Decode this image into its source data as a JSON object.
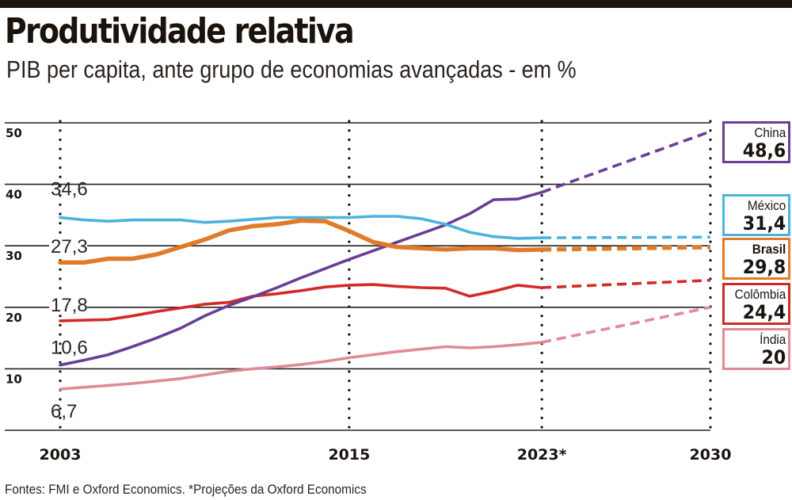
{
  "header": {
    "title": "Produtividade relativa",
    "subtitle": "PIB per capita, ante grupo de economias avançadas - em %"
  },
  "footer": {
    "source": "Fontes: FMI e Oxford Economics. *Projeções da Oxford Economics"
  },
  "chart_data": {
    "type": "line",
    "title": "Produtividade relativa",
    "subtitle": "PIB per capita, ante grupo de economias avançadas - em %",
    "xlabel": "",
    "ylabel": "%",
    "xlim": [
      2003,
      2030
    ],
    "ylim": [
      0,
      50
    ],
    "y_ticks": [
      10,
      20,
      30,
      40,
      50
    ],
    "y_tick_labels": [
      "10",
      "20",
      "30",
      "40",
      "50"
    ],
    "x_ticks": [
      2003,
      2015,
      2023,
      2030
    ],
    "x_tick_labels": [
      "2003",
      "2015",
      "2023*",
      "2030"
    ],
    "grid": "horizontal",
    "projection_start": 2023,
    "legend_placement": "right",
    "series": [
      {
        "name": "China",
        "color": "#6b3d97",
        "start_label": "10,6",
        "end_label": "48,6",
        "x": [
          2003,
          2004,
          2005,
          2006,
          2007,
          2008,
          2009,
          2010,
          2011,
          2012,
          2013,
          2014,
          2015,
          2016,
          2017,
          2018,
          2019,
          2020,
          2021,
          2022,
          2023
        ],
        "values": [
          10.6,
          11.4,
          12.3,
          13.6,
          15.0,
          16.6,
          18.6,
          20.3,
          21.7,
          23.2,
          24.8,
          26.3,
          27.8,
          29.2,
          30.6,
          32.0,
          33.4,
          35.2,
          37.5,
          37.6,
          38.7
        ],
        "projection_x": [
          2023,
          2030
        ],
        "projection_values": [
          38.7,
          48.6
        ]
      },
      {
        "name": "México",
        "color": "#4bb3dd",
        "start_label": "34,6",
        "end_label": "31,4",
        "x": [
          2003,
          2004,
          2005,
          2006,
          2007,
          2008,
          2009,
          2010,
          2011,
          2012,
          2013,
          2014,
          2015,
          2016,
          2017,
          2018,
          2019,
          2020,
          2021,
          2022,
          2023
        ],
        "values": [
          34.6,
          34.2,
          34.0,
          34.2,
          34.2,
          34.2,
          33.8,
          34.0,
          34.3,
          34.6,
          34.6,
          34.6,
          34.6,
          34.8,
          34.8,
          34.4,
          33.5,
          32.2,
          31.5,
          31.2,
          31.3
        ],
        "projection_x": [
          2023,
          2030
        ],
        "projection_values": [
          31.3,
          31.4
        ]
      },
      {
        "name": "Brasil",
        "color": "#e07b2a",
        "start_label": "27,3",
        "end_label": "29,8",
        "x": [
          2003,
          2004,
          2005,
          2006,
          2007,
          2008,
          2009,
          2010,
          2011,
          2012,
          2013,
          2014,
          2015,
          2016,
          2017,
          2018,
          2019,
          2020,
          2021,
          2022,
          2023
        ],
        "values": [
          27.3,
          27.3,
          27.9,
          27.9,
          28.6,
          29.8,
          31.0,
          32.5,
          33.2,
          33.5,
          34.1,
          34.0,
          32.4,
          30.6,
          29.8,
          29.6,
          29.4,
          29.6,
          29.6,
          29.3,
          29.4
        ],
        "projection_x": [
          2023,
          2030
        ],
        "projection_values": [
          29.4,
          29.8
        ]
      },
      {
        "name": "Colômbia",
        "color": "#d42a27",
        "start_label": "17,8",
        "end_label": "24,4",
        "x": [
          2003,
          2004,
          2005,
          2006,
          2007,
          2008,
          2009,
          2010,
          2011,
          2012,
          2013,
          2014,
          2015,
          2016,
          2017,
          2018,
          2019,
          2020,
          2021,
          2022,
          2023
        ],
        "values": [
          17.8,
          17.9,
          18.0,
          18.6,
          19.3,
          19.9,
          20.5,
          20.8,
          21.8,
          22.2,
          22.7,
          23.3,
          23.6,
          23.7,
          23.4,
          23.2,
          23.1,
          21.8,
          22.6,
          23.6,
          23.2
        ],
        "projection_x": [
          2023,
          2030
        ],
        "projection_values": [
          23.2,
          24.4
        ]
      },
      {
        "name": "Índia",
        "color": "#e08a96",
        "start_label": "6,7",
        "end_label": "20",
        "x": [
          2003,
          2004,
          2005,
          2006,
          2007,
          2008,
          2009,
          2010,
          2011,
          2012,
          2013,
          2014,
          2015,
          2016,
          2017,
          2018,
          2019,
          2020,
          2021,
          2022,
          2023
        ],
        "values": [
          6.7,
          7.0,
          7.3,
          7.6,
          8.0,
          8.4,
          9.0,
          9.6,
          10.0,
          10.3,
          10.7,
          11.2,
          11.8,
          12.3,
          12.8,
          13.2,
          13.6,
          13.4,
          13.6,
          13.9,
          14.3
        ],
        "projection_x": [
          2023,
          2030
        ],
        "projection_values": [
          14.3,
          20.0
        ]
      }
    ]
  }
}
